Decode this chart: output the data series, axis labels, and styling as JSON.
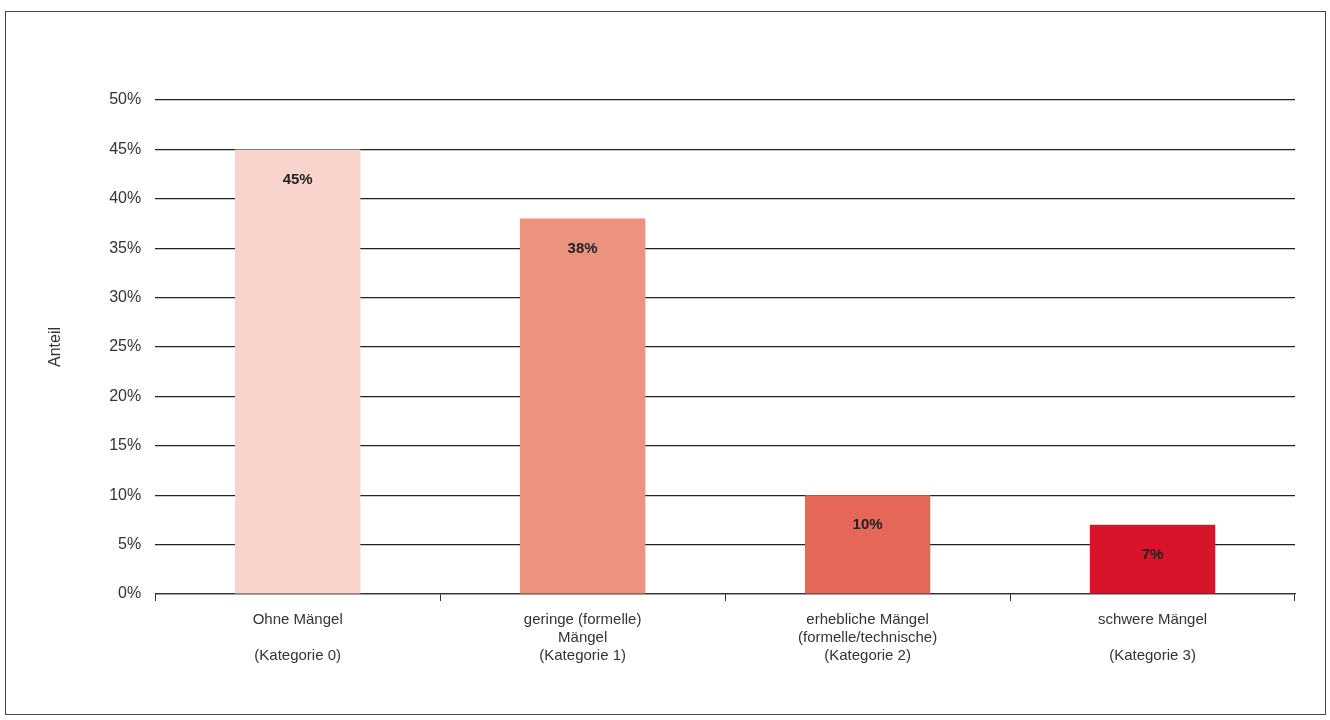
{
  "chart_data": {
    "type": "bar",
    "ylabel": "Anteil",
    "categories": [
      "Ohne Mängel\n\n(Kategorie 0)",
      "geringe (formelle)\nMängel\n(Kategorie 1)",
      "erhebliche Mängel\n(formelle/technische)\n(Kategorie 2)",
      "schwere Mängel\n\n(Kategorie 3)"
    ],
    "values": [
      45,
      38,
      10,
      7
    ],
    "colors": [
      "#f9d4cd",
      "#eb937f",
      "#e4675a",
      "#d8142b"
    ],
    "value_labels": [
      "45%",
      "38%",
      "10%",
      "7%"
    ],
    "ylim": [
      0,
      50
    ],
    "yticks": [
      {
        "value": 0,
        "label": "0%"
      },
      {
        "value": 5,
        "label": "5%"
      },
      {
        "value": 10,
        "label": "10%"
      },
      {
        "value": 15,
        "label": "15%"
      },
      {
        "value": 20,
        "label": "20%"
      },
      {
        "value": 25,
        "label": "25%"
      },
      {
        "value": 30,
        "label": "30%"
      },
      {
        "value": 35,
        "label": "35%"
      },
      {
        "value": 40,
        "label": "40%"
      },
      {
        "value": 45,
        "label": "45%"
      },
      {
        "value": 50,
        "label": "50%"
      }
    ],
    "grid": "y",
    "legend": false
  }
}
